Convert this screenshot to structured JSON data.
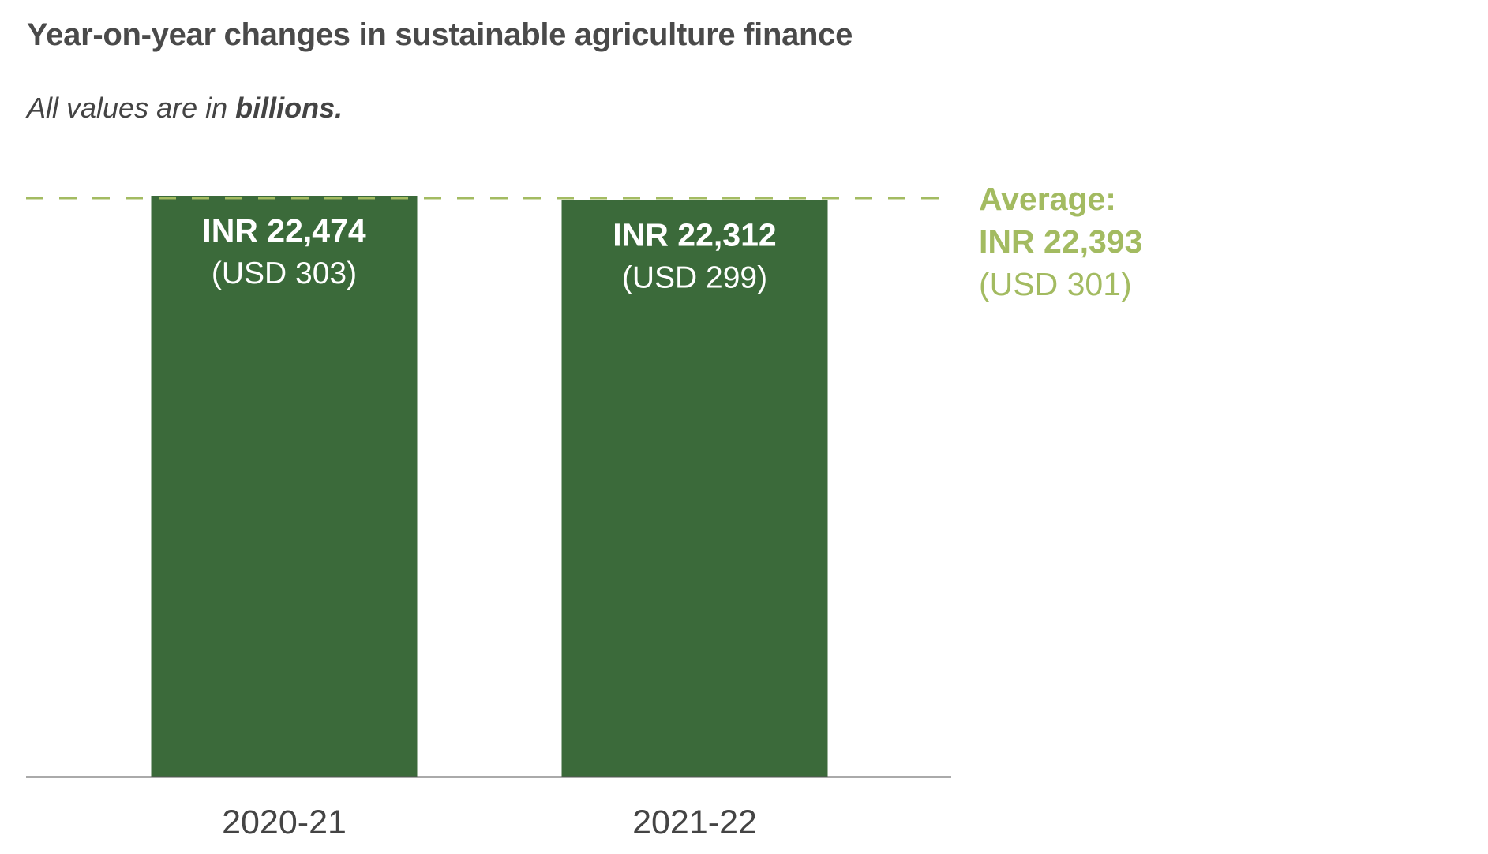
{
  "title": "Year-on-year changes in sustainable agriculture finance",
  "subtitle": {
    "prefix": "All values are in ",
    "emphasis": "billions."
  },
  "colors": {
    "bar": "#3b6a3a",
    "average": "#a3bb61",
    "axis": "#555555",
    "label_text": "#ffffff",
    "tick_text": "#444444"
  },
  "chart_data": {
    "type": "bar",
    "title": "Year-on-year changes in sustainable agriculture finance",
    "categories": [
      "2020-21",
      "2021-22"
    ],
    "values": [
      22474,
      22312
    ],
    "usd_values": [
      303,
      299
    ],
    "value_labels": [
      "INR 22,474",
      "INR 22,312"
    ],
    "usd_labels": [
      "(USD 303)",
      "(USD 299)"
    ],
    "ylim": [
      0,
      22474
    ],
    "grid": false,
    "average": {
      "value": 22393,
      "heading": "Average:",
      "label": "INR 22,393",
      "usd_label": "(USD 301)"
    }
  }
}
